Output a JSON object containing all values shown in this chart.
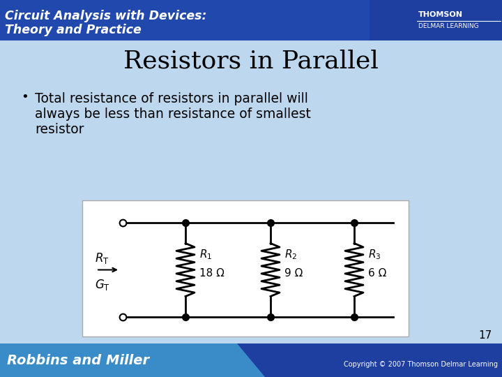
{
  "title": "Resistors in Parallel",
  "bullet_line1": "Total resistance of resistors in parallel will",
  "bullet_line2": "always be less than resistance of smallest",
  "bullet_line3": "resistor",
  "slide_bg": "#bdd8ee",
  "header_bg": "#1a3a9c",
  "header_text1": "Circuit Analysis with Devices:",
  "header_text2": "Theory and Practice",
  "header_right1": "THOMSON",
  "header_right2": "DELMAR LEARNING",
  "footer_bg_left": "#2060b0",
  "footer_bg_right": "#1a3a9c",
  "footer_text_left": "Robbins and Miller",
  "footer_text_right": "Copyright © 2007 Thomson Delmar Learning",
  "page_number": "17",
  "circuit_bg": "#ffffff",
  "resistors": [
    {
      "label": "R_1",
      "value": "18 Ω"
    },
    {
      "label": "R_2",
      "value": "9 Ω"
    },
    {
      "label": "R_3",
      "value": "6 Ω"
    }
  ]
}
